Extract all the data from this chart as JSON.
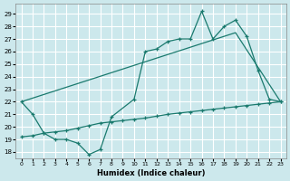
{
  "xlabel": "Humidex (Indice chaleur)",
  "bg_color": "#cce8ec",
  "grid_color": "#ffffff",
  "line_color": "#1a7a6e",
  "xlim": [
    -0.5,
    23.5
  ],
  "ylim": [
    17.5,
    29.8
  ],
  "xticks": [
    0,
    1,
    2,
    3,
    4,
    5,
    6,
    7,
    8,
    9,
    10,
    11,
    12,
    13,
    14,
    15,
    16,
    17,
    18,
    19,
    20,
    21,
    22,
    23
  ],
  "yticks": [
    18,
    19,
    20,
    21,
    22,
    23,
    24,
    25,
    26,
    27,
    28,
    29
  ],
  "line1_x": [
    0,
    1,
    2,
    3,
    4,
    5,
    6,
    7,
    8,
    10,
    11,
    12,
    13,
    14,
    15,
    16,
    17,
    18,
    19,
    20,
    21,
    22,
    23
  ],
  "line1_y": [
    22,
    21,
    19.5,
    19,
    19,
    18.7,
    17.8,
    18.2,
    20.8,
    22.2,
    26,
    26.2,
    26.8,
    27,
    27,
    29.2,
    27,
    28,
    28.5,
    27.2,
    24.5,
    22.2,
    22
  ],
  "line2_x": [
    0,
    23
  ],
  "line2_y": [
    22.0,
    22.0
  ],
  "line3_x": [
    0,
    1,
    2,
    3,
    4,
    5,
    6,
    7,
    8,
    9,
    10,
    11,
    12,
    13,
    14,
    15,
    16,
    17,
    18,
    19,
    20,
    21,
    22,
    23
  ],
  "line3_y": [
    19.2,
    19.3,
    19.5,
    19.6,
    19.7,
    19.9,
    20.1,
    20.3,
    20.4,
    20.5,
    20.6,
    20.7,
    20.85,
    21.0,
    21.1,
    21.2,
    21.3,
    21.4,
    21.5,
    21.6,
    21.7,
    21.8,
    21.9,
    22.0
  ],
  "line4_x": [
    0,
    19,
    23
  ],
  "line4_y": [
    22.0,
    27.5,
    22.0
  ]
}
